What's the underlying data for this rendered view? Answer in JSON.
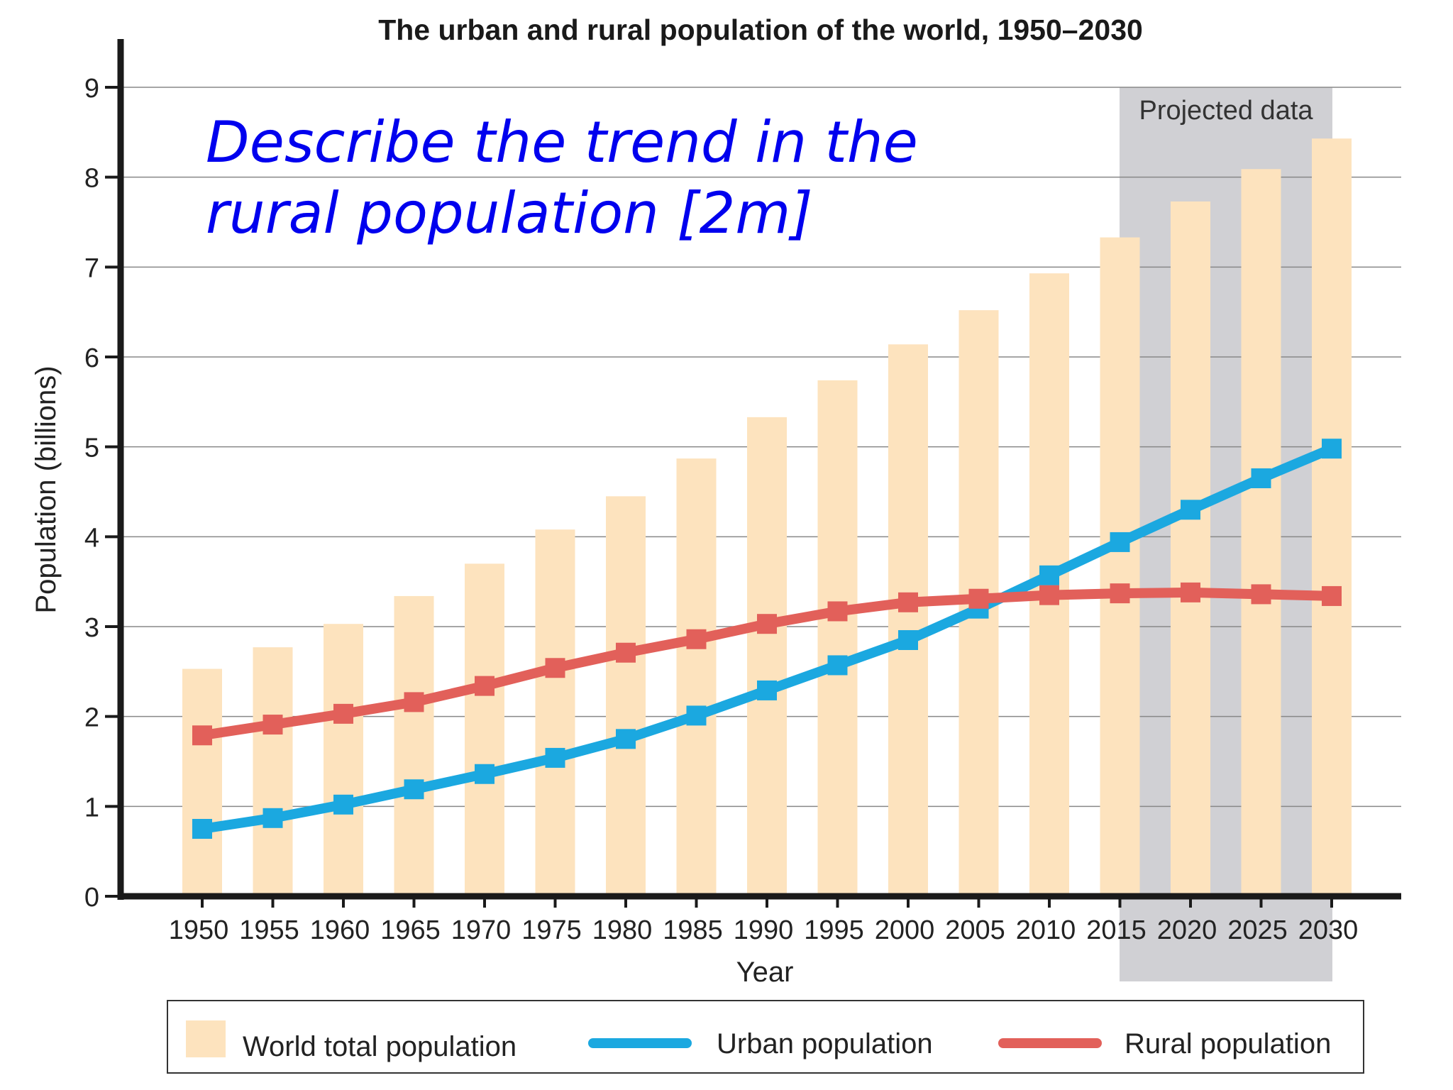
{
  "chart_data": {
    "type": "bar",
    "title": "The urban and rural population of the world, 1950–2030",
    "xlabel": "Year",
    "ylabel": "Population (billions)",
    "ylim": [
      0,
      9
    ],
    "yticks": [
      0,
      1,
      2,
      3,
      4,
      5,
      6,
      7,
      8,
      9
    ],
    "grid": true,
    "legend_position": "bottom",
    "categories": [
      "1950",
      "1955",
      "1960",
      "1965",
      "1970",
      "1975",
      "1980",
      "1985",
      "1990",
      "1995",
      "2000",
      "2005",
      "2010",
      "2015",
      "2020",
      "2025",
      "2030"
    ],
    "series": [
      {
        "name": "World total population",
        "type": "bar",
        "color": "#fde3be",
        "values": [
          2.53,
          2.77,
          3.03,
          3.34,
          3.7,
          4.08,
          4.45,
          4.87,
          5.33,
          5.74,
          6.14,
          6.52,
          6.93,
          7.33,
          7.73,
          8.09,
          8.43
        ]
      },
      {
        "name": "Urban population",
        "type": "line",
        "color": "#1ba8e0",
        "values": [
          0.75,
          0.87,
          1.02,
          1.19,
          1.36,
          1.54,
          1.75,
          2.01,
          2.29,
          2.57,
          2.85,
          3.2,
          3.57,
          3.94,
          4.3,
          4.65,
          4.98
        ]
      },
      {
        "name": "Rural population",
        "type": "line",
        "color": "#e2605a",
        "values": [
          1.79,
          1.91,
          2.03,
          2.16,
          2.34,
          2.54,
          2.71,
          2.86,
          3.03,
          3.17,
          3.27,
          3.31,
          3.35,
          3.37,
          3.38,
          3.36,
          3.34
        ]
      }
    ],
    "projection": {
      "label": "Projected data",
      "from": "2015",
      "to": "2030",
      "color": "#d0d0d4"
    },
    "annotation": {
      "lines": [
        "Describe the trend in the",
        "rural population [2m]"
      ],
      "color": "#0000ee"
    }
  }
}
